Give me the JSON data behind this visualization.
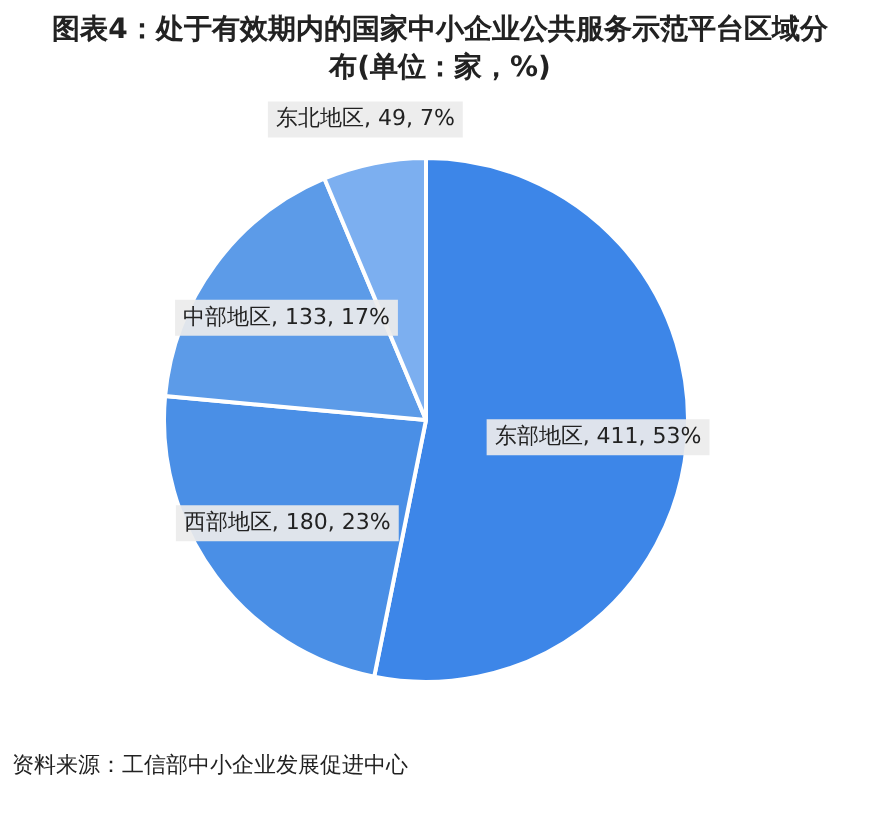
{
  "chart_data": {
    "type": "pie",
    "title": "图表4：处于有效期内的国家中小企业公共服务示范平台区域分布(单位：家，%)",
    "categories": [
      "东部地区",
      "西部地区",
      "中部地区",
      "东北地区"
    ],
    "values": [
      411,
      180,
      133,
      49
    ],
    "value_labels": [
      "411, 53%",
      "180, 23%",
      "133, 17%",
      "49, 7%"
    ],
    "colors": [
      "#3d86e8",
      "#4a8fe6",
      "#5c9be8",
      "#7caff0"
    ],
    "legend": false,
    "annotations": [
      "资料来源：工信部中小企业发展促进中心"
    ]
  }
}
